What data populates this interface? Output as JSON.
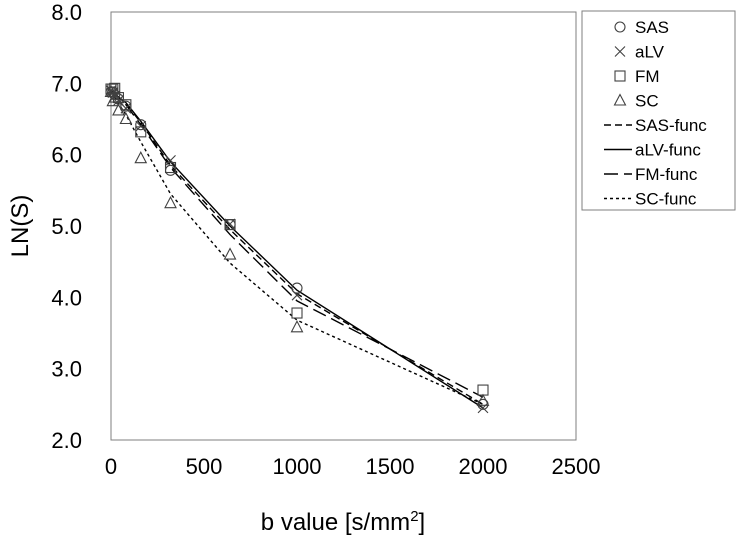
{
  "chart_data": {
    "type": "scatter",
    "title": "",
    "xlabel": "b value [s/mm",
    "xlabel_sup": "2",
    "xlabel_end": "]",
    "ylabel": "LN(S)",
    "xlim": [
      0,
      2500
    ],
    "ylim": [
      2.0,
      8.0
    ],
    "x_ticks": [
      0,
      500,
      1000,
      1500,
      2000,
      2500
    ],
    "x_tick_labels": [
      "0",
      "500",
      "1000",
      "1500",
      "2000",
      "2500"
    ],
    "y_ticks": [
      2.0,
      3.0,
      4.0,
      5.0,
      6.0,
      7.0,
      8.0
    ],
    "y_tick_labels": [
      "2.0",
      "3.0",
      "4.0",
      "5.0",
      "6.0",
      "7.0",
      "8.0"
    ],
    "grid": false,
    "legend_position": "right",
    "x": [
      0,
      10,
      20,
      40,
      80,
      160,
      320,
      640,
      1000,
      2000
    ],
    "series": [
      {
        "name": "SAS",
        "kind": "points",
        "marker": "circle",
        "values": [
          6.88,
          6.88,
          6.84,
          6.78,
          6.68,
          6.42,
          5.78,
          5.02,
          4.13,
          2.5
        ]
      },
      {
        "name": "aLV",
        "kind": "points",
        "marker": "cross",
        "values": [
          6.9,
          6.87,
          6.82,
          6.76,
          6.65,
          6.4,
          5.92,
          5.03,
          4.03,
          2.45
        ]
      },
      {
        "name": "FM",
        "kind": "points",
        "marker": "square",
        "values": [
          6.92,
          6.92,
          6.93,
          6.8,
          6.7,
          6.32,
          5.82,
          5.02,
          3.78,
          2.7
        ]
      },
      {
        "name": "SC",
        "kind": "points",
        "marker": "triangle",
        "values": [
          6.88,
          6.75,
          6.8,
          6.62,
          6.5,
          5.95,
          5.32,
          4.6,
          3.58,
          2.55
        ]
      },
      {
        "name": "SAS-func",
        "kind": "line",
        "dash": "7,4",
        "values": [
          6.9,
          6.88,
          6.86,
          6.81,
          6.72,
          6.45,
          5.85,
          4.95,
          4.05,
          2.5
        ]
      },
      {
        "name": "aLV-func",
        "kind": "line",
        "dash": "",
        "values": [
          6.9,
          6.88,
          6.86,
          6.81,
          6.73,
          6.47,
          5.9,
          5.0,
          4.1,
          2.45
        ]
      },
      {
        "name": "FM-func",
        "kind": "line",
        "dash": "14,6",
        "values": [
          6.9,
          6.88,
          6.85,
          6.8,
          6.7,
          6.42,
          5.82,
          4.88,
          3.95,
          2.6
        ]
      },
      {
        "name": "SC-func",
        "kind": "line",
        "dash": "3,3",
        "values": [
          6.88,
          6.84,
          6.8,
          6.72,
          6.56,
          6.18,
          5.45,
          4.48,
          3.68,
          2.5
        ]
      }
    ]
  }
}
